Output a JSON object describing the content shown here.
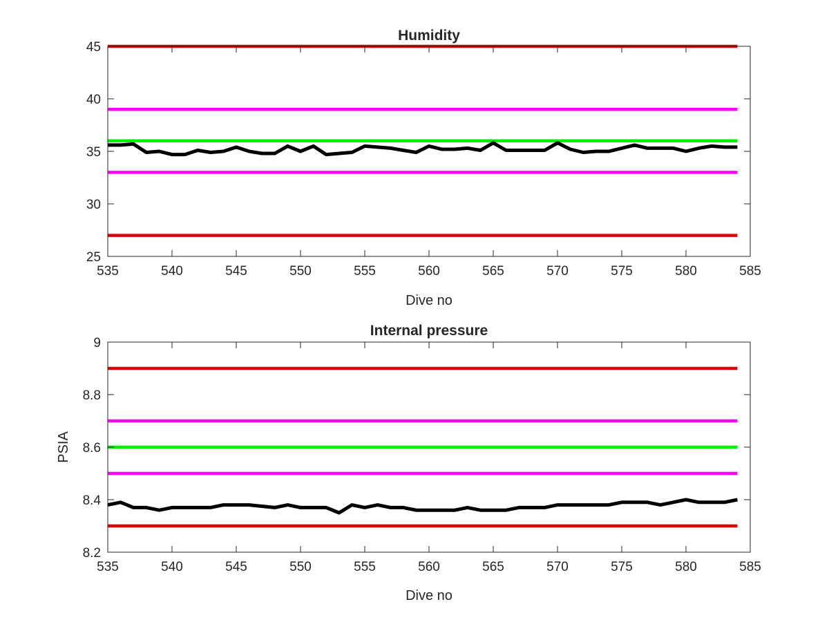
{
  "chart_data": [
    {
      "type": "line",
      "title": "Humidity",
      "xlabel": "Dive no",
      "ylabel": "",
      "xlim": [
        535,
        585
      ],
      "ylim": [
        25,
        45
      ],
      "xticks": [
        535,
        540,
        545,
        550,
        555,
        560,
        565,
        570,
        575,
        580,
        585
      ],
      "yticks": [
        25,
        30,
        35,
        40,
        45
      ],
      "grid": false,
      "series": [
        {
          "color": "#dd0000",
          "x": [
            535,
            584
          ],
          "y": [
            45,
            45
          ]
        },
        {
          "color": "#ff00ff",
          "x": [
            535,
            584
          ],
          "y": [
            39,
            39
          ]
        },
        {
          "color": "#00ee00",
          "x": [
            535,
            584
          ],
          "y": [
            36,
            36
          ]
        },
        {
          "color": "#ff00ff",
          "x": [
            535,
            584
          ],
          "y": [
            33,
            33
          ]
        },
        {
          "color": "#dd0000",
          "x": [
            535,
            584
          ],
          "y": [
            27,
            27
          ]
        },
        {
          "color": "#000000",
          "x": [
            535,
            536,
            537,
            538,
            539,
            540,
            541,
            542,
            543,
            544,
            545,
            546,
            547,
            548,
            549,
            550,
            551,
            552,
            553,
            554,
            555,
            556,
            557,
            558,
            559,
            560,
            561,
            562,
            563,
            564,
            565,
            566,
            567,
            568,
            569,
            570,
            571,
            572,
            573,
            574,
            575,
            576,
            577,
            578,
            579,
            580,
            581,
            582,
            583,
            584
          ],
          "y": [
            35.6,
            35.6,
            35.7,
            34.9,
            35.0,
            34.7,
            34.7,
            35.1,
            34.9,
            35.0,
            35.4,
            35.0,
            34.8,
            34.8,
            35.5,
            35.0,
            35.5,
            34.7,
            34.8,
            34.9,
            35.5,
            35.4,
            35.3,
            35.1,
            34.9,
            35.5,
            35.2,
            35.2,
            35.3,
            35.1,
            35.8,
            35.1,
            35.1,
            35.1,
            35.1,
            35.8,
            35.2,
            34.9,
            35.0,
            35.0,
            35.3,
            35.6,
            35.3,
            35.3,
            35.3,
            35.0,
            35.3,
            35.5,
            35.4,
            35.4
          ]
        }
      ]
    },
    {
      "type": "line",
      "title": "Internal pressure",
      "xlabel": "Dive no",
      "ylabel": "PSIA",
      "xlim": [
        535,
        585
      ],
      "ylim": [
        8.2,
        9
      ],
      "xticks": [
        535,
        540,
        545,
        550,
        555,
        560,
        565,
        570,
        575,
        580,
        585
      ],
      "yticks": [
        8.2,
        8.4,
        8.6,
        8.8,
        9
      ],
      "grid": false,
      "series": [
        {
          "color": "#dd0000",
          "x": [
            535,
            584
          ],
          "y": [
            8.9,
            8.9
          ]
        },
        {
          "color": "#ff00ff",
          "x": [
            535,
            584
          ],
          "y": [
            8.7,
            8.7
          ]
        },
        {
          "color": "#00ee00",
          "x": [
            535,
            584
          ],
          "y": [
            8.6,
            8.6
          ]
        },
        {
          "color": "#ff00ff",
          "x": [
            535,
            584
          ],
          "y": [
            8.5,
            8.5
          ]
        },
        {
          "color": "#dd0000",
          "x": [
            535,
            584
          ],
          "y": [
            8.3,
            8.3
          ]
        },
        {
          "color": "#000000",
          "x": [
            535,
            536,
            537,
            538,
            539,
            540,
            541,
            542,
            543,
            544,
            545,
            546,
            547,
            548,
            549,
            550,
            551,
            552,
            553,
            554,
            555,
            556,
            557,
            558,
            559,
            560,
            561,
            562,
            563,
            564,
            565,
            566,
            567,
            568,
            569,
            570,
            571,
            572,
            573,
            574,
            575,
            576,
            577,
            578,
            579,
            580,
            581,
            582,
            583,
            584
          ],
          "y": [
            8.38,
            8.39,
            8.37,
            8.37,
            8.36,
            8.37,
            8.37,
            8.37,
            8.37,
            8.38,
            8.38,
            8.38,
            8.375,
            8.37,
            8.38,
            8.37,
            8.37,
            8.37,
            8.35,
            8.38,
            8.37,
            8.38,
            8.37,
            8.37,
            8.36,
            8.36,
            8.36,
            8.36,
            8.37,
            8.36,
            8.36,
            8.36,
            8.37,
            8.37,
            8.37,
            8.38,
            8.38,
            8.38,
            8.38,
            8.38,
            8.39,
            8.39,
            8.39,
            8.38,
            8.39,
            8.4,
            8.39,
            8.39,
            8.39,
            8.4
          ]
        }
      ]
    }
  ]
}
